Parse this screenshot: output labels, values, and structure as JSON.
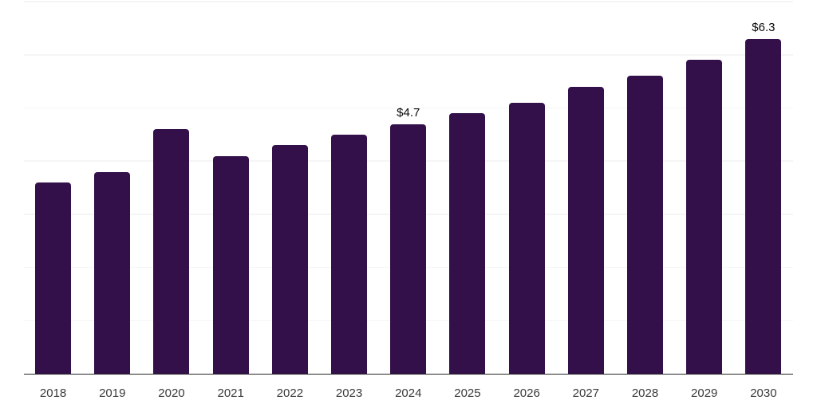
{
  "chart_data": {
    "type": "bar",
    "categories": [
      "2018",
      "2019",
      "2020",
      "2021",
      "2022",
      "2023",
      "2024",
      "2025",
      "2026",
      "2027",
      "2028",
      "2029",
      "2030"
    ],
    "values": [
      3.6,
      3.8,
      4.6,
      4.1,
      4.3,
      4.5,
      4.7,
      4.9,
      5.1,
      5.4,
      5.6,
      5.9,
      6.3
    ],
    "data_labels": [
      "",
      "",
      "",
      "",
      "",
      "",
      "$4.7",
      "",
      "",
      "",
      "",
      "",
      "$6.3"
    ],
    "ylim": [
      0,
      7
    ],
    "gridline_values": [
      1,
      2,
      3,
      4,
      5,
      6,
      7
    ],
    "grid": true,
    "legend": "none",
    "y_axis_tick_labels": [],
    "colors": {
      "bar": "#331049",
      "gridline": "#f5f5f5",
      "axis_line": "#262626",
      "tick_label": "#3a3a3a",
      "value_label": "#0a0a0a",
      "background": "#ffffff"
    }
  }
}
